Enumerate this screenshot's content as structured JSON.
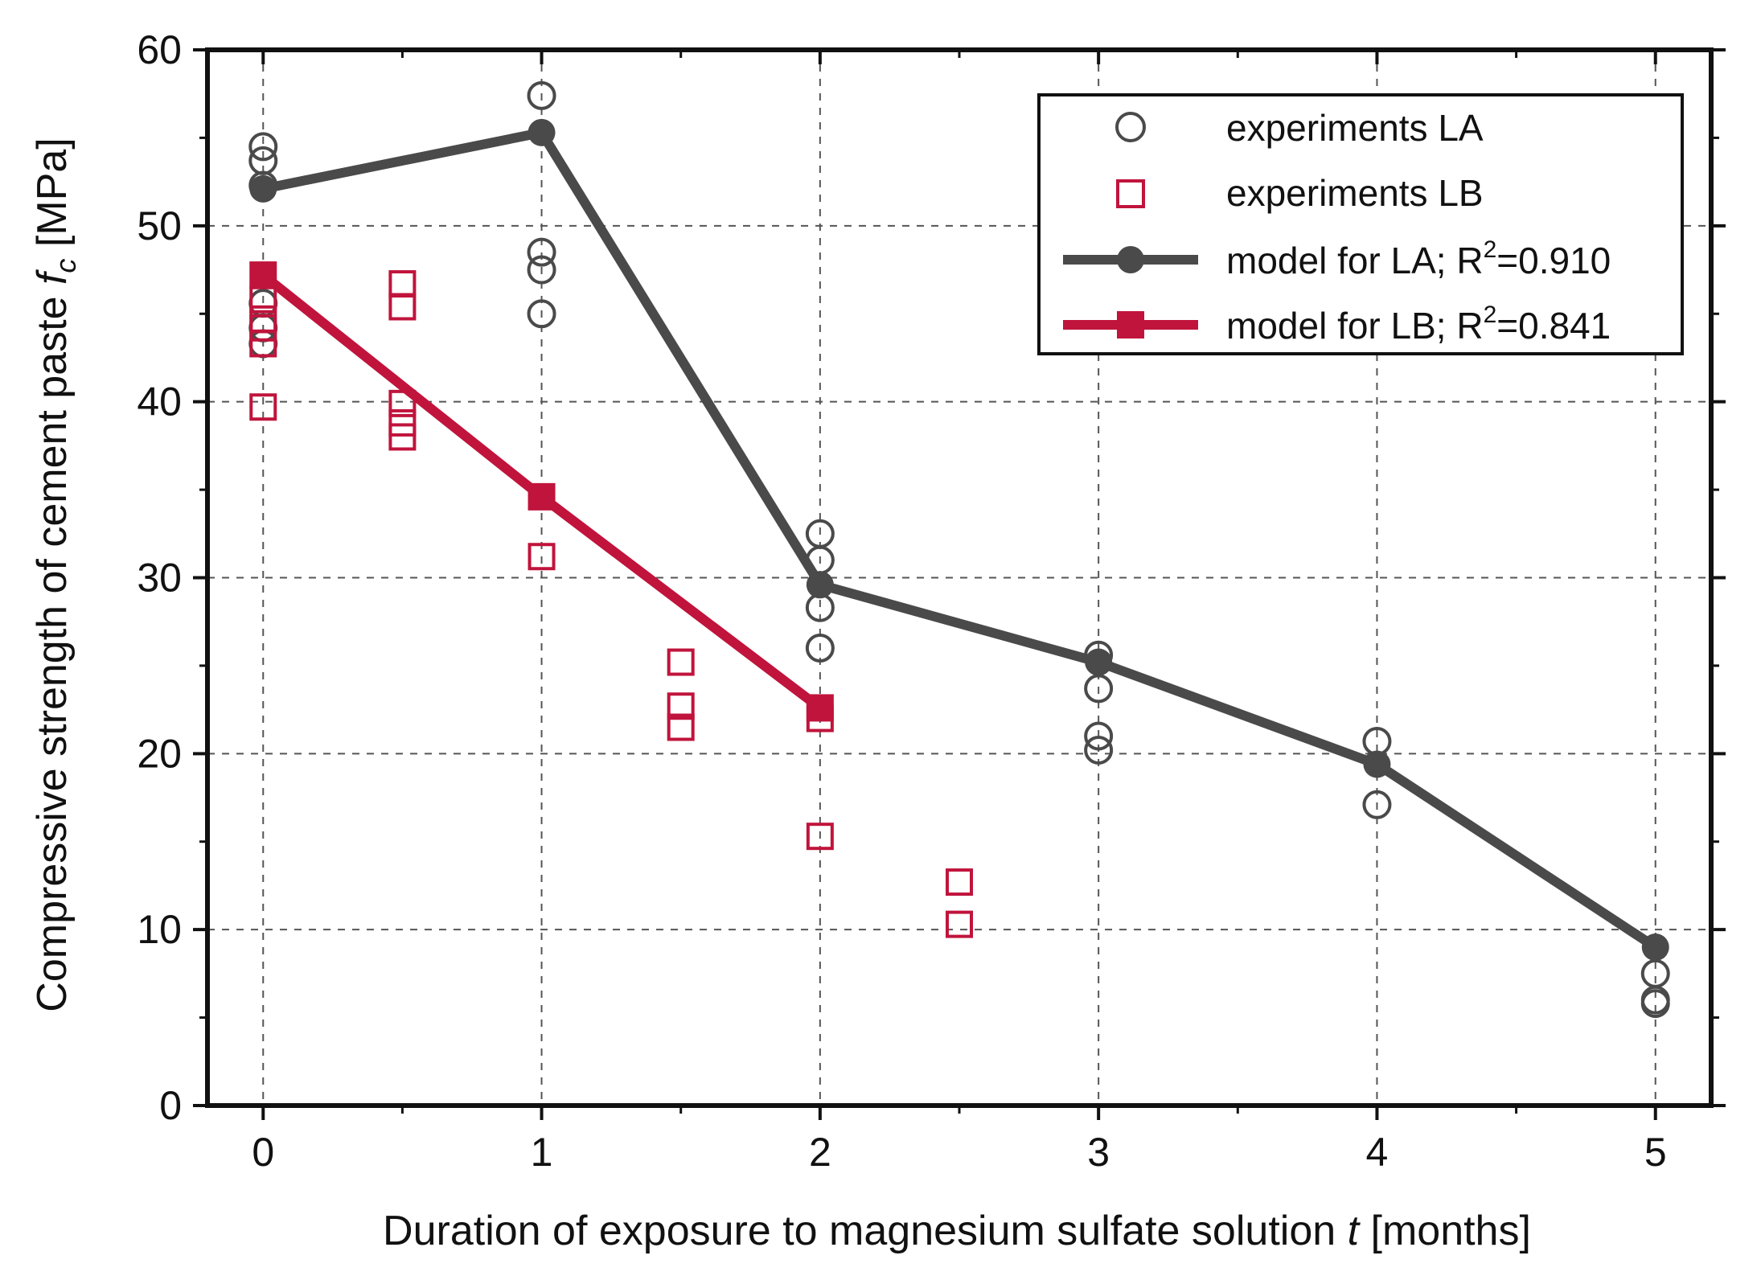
{
  "chart_data": {
    "type": "line",
    "title": "",
    "xlabel_prefix": "Duration of exposure to magnesium sulfate solution ",
    "xlabel_var": "t",
    "xlabel_suffix": " [months]",
    "ylabel_prefix": "Compressive strength of cement paste ",
    "ylabel_var": "f",
    "ylabel_sub": "c",
    "ylabel_suffix": " [MPa]",
    "xlim": [
      -0.2,
      5.2
    ],
    "ylim": [
      0,
      60
    ],
    "xticks": [
      0,
      1,
      2,
      3,
      4,
      5
    ],
    "yticks": [
      0,
      10,
      20,
      30,
      40,
      50,
      60
    ],
    "xtick_labels": [
      "0",
      "1",
      "2",
      "3",
      "4",
      "5"
    ],
    "ytick_labels": [
      "0",
      "10",
      "20",
      "30",
      "40",
      "50",
      "60"
    ],
    "grid": true,
    "legend_position": "top-right",
    "colors": {
      "LA": "#4a4a4a",
      "LB": "#c0143c",
      "axis": "#111111",
      "grid": "#555555"
    },
    "legend": [
      {
        "key": "exp-la",
        "label": "experiments LA",
        "sup": "",
        "suffix": ""
      },
      {
        "key": "exp-lb",
        "label": "experiments LB",
        "sup": "",
        "suffix": ""
      },
      {
        "key": "model-la",
        "label": "model for LA; R",
        "sup": "2",
        "suffix": "=0.910"
      },
      {
        "key": "model-lb",
        "label": "model for LB; R",
        "sup": "2",
        "suffix": "=0.841"
      }
    ],
    "series": [
      {
        "name": "experiments LA",
        "kind": "scatter",
        "marker": "circle",
        "color": "#4a4a4a",
        "points": [
          [
            0,
            54.5
          ],
          [
            0,
            53.7
          ],
          [
            0,
            52.3
          ],
          [
            0,
            45.6
          ],
          [
            0,
            44.2
          ],
          [
            0,
            43.3
          ],
          [
            1,
            57.4
          ],
          [
            1,
            48.5
          ],
          [
            1,
            47.5
          ],
          [
            1,
            45.0
          ],
          [
            2,
            32.5
          ],
          [
            2,
            31.0
          ],
          [
            2,
            28.3
          ],
          [
            2,
            26.0
          ],
          [
            3,
            25.6
          ],
          [
            3,
            23.7
          ],
          [
            3,
            21.0
          ],
          [
            3,
            20.2
          ],
          [
            4,
            20.7
          ],
          [
            4,
            17.1
          ],
          [
            5,
            7.5
          ],
          [
            5,
            6.0
          ],
          [
            5,
            5.8
          ]
        ]
      },
      {
        "name": "experiments LB",
        "kind": "scatter",
        "marker": "square",
        "color": "#c0143c",
        "points": [
          [
            0,
            45.8
          ],
          [
            0,
            44.7
          ],
          [
            0,
            44.2
          ],
          [
            0,
            43.3
          ],
          [
            0,
            39.7
          ],
          [
            0.5,
            46.7
          ],
          [
            0.5,
            45.4
          ],
          [
            0.5,
            39.9
          ],
          [
            0.5,
            38.8
          ],
          [
            0.5,
            38.0
          ],
          [
            1,
            31.2
          ],
          [
            1.5,
            25.2
          ],
          [
            1.5,
            22.7
          ],
          [
            1.5,
            21.5
          ],
          [
            2,
            22.0
          ],
          [
            2,
            15.3
          ],
          [
            2.5,
            12.7
          ],
          [
            2.5,
            10.3
          ]
        ]
      },
      {
        "name": "model for LA; R2=0.910",
        "kind": "line",
        "marker": "circle",
        "color": "#4a4a4a",
        "points": [
          [
            0,
            52.1
          ],
          [
            1,
            55.3
          ],
          [
            2,
            29.6
          ],
          [
            3,
            25.2
          ],
          [
            4,
            19.4
          ],
          [
            5,
            9.0
          ]
        ]
      },
      {
        "name": "model for LB; R2=0.841",
        "kind": "line",
        "marker": "square",
        "color": "#c0143c",
        "points": [
          [
            0,
            47.2
          ],
          [
            1,
            34.6
          ],
          [
            2,
            22.6
          ]
        ]
      }
    ]
  }
}
